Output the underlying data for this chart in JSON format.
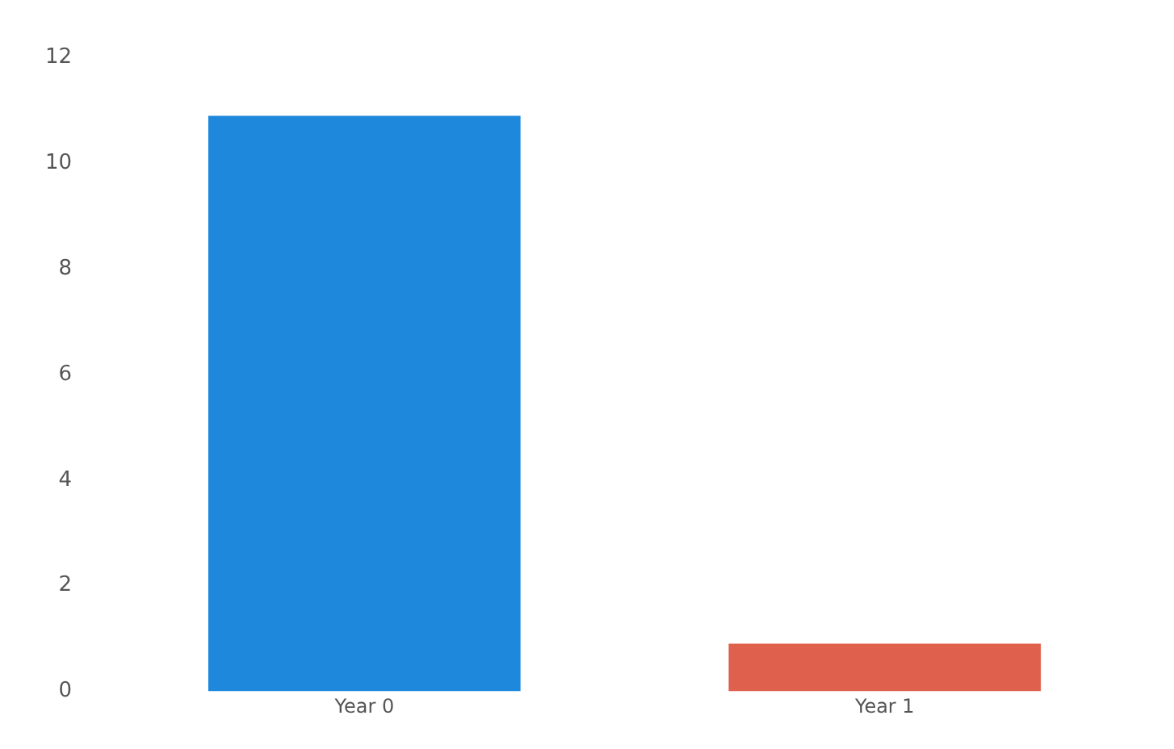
{
  "chart_data": {
    "type": "bar",
    "categories": [
      "Year 0",
      "Year 1"
    ],
    "values": [
      10.9,
      0.9
    ],
    "colors": [
      "#1e88dc",
      "#e0604e"
    ],
    "ylim": [
      0,
      12
    ],
    "yticks": [
      0,
      2,
      4,
      6,
      8,
      10,
      12
    ],
    "grid": false,
    "legend": false
  }
}
